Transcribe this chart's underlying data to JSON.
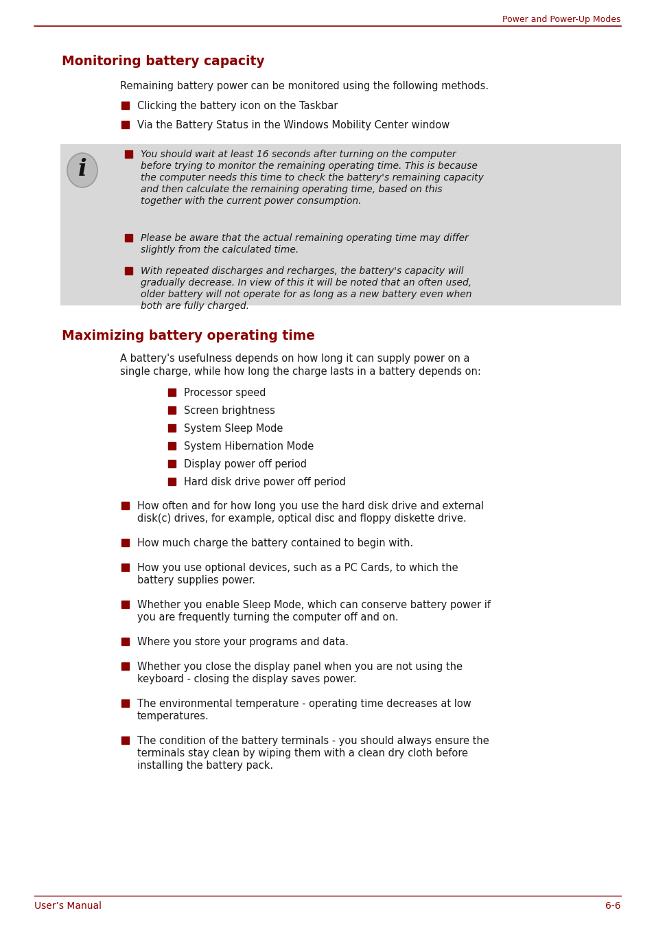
{
  "header_text": "Power and Power-Up Modes",
  "header_color": "#8B0000",
  "section1_title": "Monitoring battery capacity",
  "section1_intro": "Remaining battery power can be monitored using the following methods.",
  "section1_bullets": [
    "Clicking the battery icon on the Taskbar",
    "Via the Battery Status in the Windows Mobility Center window"
  ],
  "note_bg_color": "#D8D8D8",
  "note_items": [
    "You should wait at least 16 seconds after turning on the computer\nbefore trying to monitor the remaining operating time. This is because\nthe computer needs this time to check the battery's remaining capacity\nand then calculate the remaining operating time, based on this\ntogether with the current power consumption.",
    "Please be aware that the actual remaining operating time may differ\nslightly from the calculated time.",
    "With repeated discharges and recharges, the battery's capacity will\ngradually decrease. In view of this it will be noted that an often used,\nolder battery will not operate for as long as a new battery even when\nboth are fully charged."
  ],
  "section2_title": "Maximizing battery operating time",
  "section2_intro_line1": "A battery's usefulness depends on how long it can supply power on a",
  "section2_intro_line2": "single charge, while how long the charge lasts in a battery depends on:",
  "section2_sub_bullets": [
    "Processor speed",
    "Screen brightness",
    "System Sleep Mode",
    "System Hibernation Mode",
    "Display power off period",
    "Hard disk drive power off period"
  ],
  "section2_main_bullets": [
    "How often and for how long you use the hard disk drive and external\ndisk(c) drives, for example, optical disc and floppy diskette drive.",
    "How much charge the battery contained to begin with.",
    "How you use optional devices, such as a PC Cards, to which the\nbattery supplies power.",
    "Whether you enable Sleep Mode, which can conserve battery power if\nyou are frequently turning the computer off and on.",
    "Where you store your programs and data.",
    "Whether you close the display panel when you are not using the\nkeyboard - closing the display saves power.",
    "The environmental temperature - operating time decreases at low\ntemperatures.",
    "The condition of the battery terminals - you should always ensure the\nterminals stay clean by wiping them with a clean dry cloth before\ninstalling the battery pack."
  ],
  "footer_left": "User’s Manual",
  "footer_right": "6-6",
  "accent_color": "#8B0000",
  "text_color": "#1a1a1a",
  "bg_color": "#FFFFFF"
}
